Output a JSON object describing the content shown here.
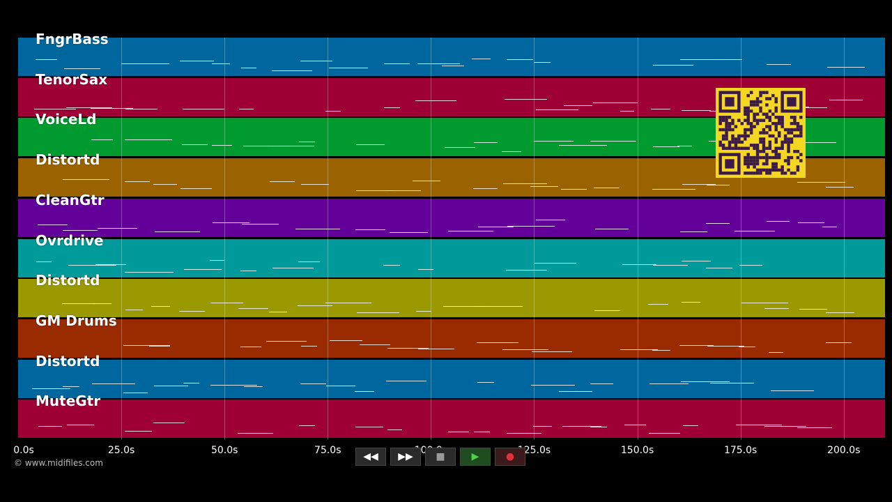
{
  "tracks": [
    {
      "label": "FngrBass",
      "color": "#00679e"
    },
    {
      "label": "TenorSax",
      "color": "#9e0035"
    },
    {
      "label": "VoiceLd",
      "color": "#009a2e"
    },
    {
      "label": "Distortd",
      "color": "#9a6300"
    },
    {
      "label": "CleanGtr",
      "color": "#64009a"
    },
    {
      "label": "Ovrdrive",
      "color": "#009a9a"
    },
    {
      "label": "Distortd",
      "color": "#9a9a00"
    },
    {
      "label": "GM Drums",
      "color": "#9a2a00"
    },
    {
      "label": "Distortd",
      "color": "#00679e"
    },
    {
      "label": "MuteGtr",
      "color": "#9e0035"
    }
  ],
  "time_axis": {
    "ticks": [
      "0.0s",
      "25.0s",
      "50.0s",
      "75.0s",
      "100.0s",
      "125.0s",
      "150.0s",
      "175.0s",
      "200.0s"
    ],
    "max_seconds": 210
  },
  "credit": "© www.midifiles.com",
  "qr_code": {
    "icon": "qr-code",
    "color": "#f4d722"
  },
  "transport": {
    "rewind_icon": "◀◀",
    "forward_icon": "▶▶",
    "stop_icon": "■",
    "play_icon": "▶",
    "record_icon": "●"
  }
}
